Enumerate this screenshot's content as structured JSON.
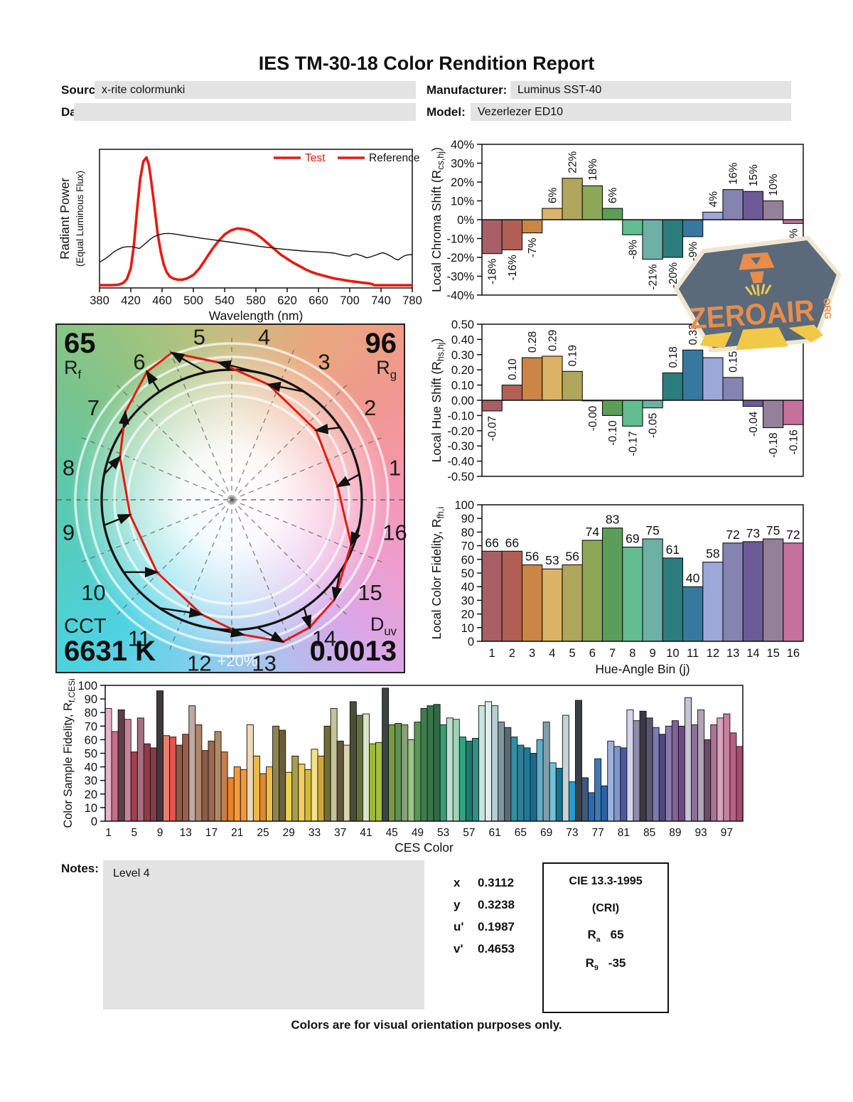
{
  "title": "IES TM-30-18 Color Rendition Report",
  "header": {
    "source_label": "Source:",
    "source_value": "x-rite colormunki",
    "manufacturer_label": "Manufacturer:",
    "manufacturer_value": "Luminus SST-40",
    "date_label": "Date:",
    "date_value": "",
    "model_label": "Model:",
    "model_value": "Vezerlezer ED10"
  },
  "bin_colors": [
    "#a85f66",
    "#b26055",
    "#cb8544",
    "#dcb366",
    "#b0a65c",
    "#8da757",
    "#5c9e59",
    "#62bd90",
    "#6fb0a4",
    "#2b7e7d",
    "#38789f",
    "#9ca8d8",
    "#8583b0",
    "#6c5b96",
    "#948099",
    "#c5719c"
  ],
  "vector_graphic": {
    "rf_value": "65",
    "rf_label": "R",
    "rf_sub": "f",
    "rg_value": "96",
    "rg_label": "R",
    "rg_sub": "g",
    "cct_label": "CCT",
    "cct_value": "6631 K",
    "duv_label": "D",
    "duv_sub": "uv",
    "duv_value": "0.0013",
    "ring_label": "+20%",
    "bins": [
      1,
      2,
      3,
      4,
      5,
      6,
      7,
      8,
      9,
      10,
      11,
      12,
      13,
      14,
      15,
      16
    ],
    "test_color": "#e8190f",
    "reference_color": "#111111",
    "wheel_colors": [
      "#c9bc82",
      "#e8a87e",
      "#f0988e",
      "#f497ae",
      "#f09ccc",
      "#d8a8ea",
      "#abc2ee",
      "#7fd0ec",
      "#4ed2e2",
      "#54cdc0",
      "#5fc8a8",
      "#7ac48c",
      "#a0c47e",
      "#c9bc82"
    ]
  },
  "chart_data": [
    {
      "id": "spd",
      "type": "line",
      "xlabel": "Wavelength (nm)",
      "ylabel": "Radiant Power",
      "ylabel2": "(Equal Luminous Flux)",
      "x_ticks": [
        380,
        420,
        460,
        500,
        540,
        580,
        620,
        660,
        700,
        740,
        780
      ],
      "xlim": [
        380,
        780
      ],
      "ylim": [
        0,
        1
      ],
      "legend": [
        {
          "label": "Test",
          "line_color": "#e8190f",
          "label_color": "#e8190f"
        },
        {
          "label": "Reference",
          "line_color": "#e8190f",
          "label_color": "#111111"
        }
      ],
      "series": [
        {
          "name": "Test",
          "color": "#e8190f",
          "width": 3.6,
          "points": [
            [
              380,
              0.005
            ],
            [
              396,
              0.005
            ],
            [
              404,
              0.008
            ],
            [
              410,
              0.02
            ],
            [
              415,
              0.05
            ],
            [
              420,
              0.13
            ],
            [
              424,
              0.3
            ],
            [
              428,
              0.56
            ],
            [
              432,
              0.79
            ],
            [
              436,
              0.92
            ],
            [
              440,
              0.95
            ],
            [
              443,
              0.9
            ],
            [
              446,
              0.78
            ],
            [
              450,
              0.6
            ],
            [
              454,
              0.4
            ],
            [
              458,
              0.26
            ],
            [
              462,
              0.16
            ],
            [
              466,
              0.1
            ],
            [
              470,
              0.068
            ],
            [
              475,
              0.052
            ],
            [
              480,
              0.046
            ],
            [
              486,
              0.045
            ],
            [
              492,
              0.055
            ],
            [
              500,
              0.08
            ],
            [
              508,
              0.13
            ],
            [
              516,
              0.2
            ],
            [
              524,
              0.27
            ],
            [
              532,
              0.33
            ],
            [
              540,
              0.38
            ],
            [
              548,
              0.41
            ],
            [
              556,
              0.425
            ],
            [
              564,
              0.42
            ],
            [
              572,
              0.41
            ],
            [
              580,
              0.385
            ],
            [
              588,
              0.35
            ],
            [
              596,
              0.31
            ],
            [
              604,
              0.27
            ],
            [
              612,
              0.23
            ],
            [
              620,
              0.2
            ],
            [
              628,
              0.17
            ],
            [
              636,
              0.145
            ],
            [
              644,
              0.12
            ],
            [
              652,
              0.1
            ],
            [
              660,
              0.085
            ],
            [
              670,
              0.07
            ],
            [
              680,
              0.055
            ],
            [
              690,
              0.045
            ],
            [
              700,
              0.035
            ],
            [
              710,
              0.028
            ],
            [
              718,
              0.022
            ],
            [
              726,
              0.017
            ],
            [
              729,
              0.012
            ],
            [
              731,
              0.004
            ],
            [
              740,
              0.004
            ],
            [
              780,
              0.004
            ]
          ]
        },
        {
          "name": "Reference",
          "color": "#111111",
          "width": 1.4,
          "points": [
            [
              380,
              0.175
            ],
            [
              386,
              0.195
            ],
            [
              392,
              0.22
            ],
            [
              398,
              0.25
            ],
            [
              404,
              0.27
            ],
            [
              410,
              0.285
            ],
            [
              416,
              0.29
            ],
            [
              422,
              0.29
            ],
            [
              427,
              0.282
            ],
            [
              431,
              0.276
            ],
            [
              435,
              0.295
            ],
            [
              440,
              0.32
            ],
            [
              445,
              0.345
            ],
            [
              450,
              0.365
            ],
            [
              456,
              0.378
            ],
            [
              462,
              0.386
            ],
            [
              468,
              0.388
            ],
            [
              474,
              0.385
            ],
            [
              480,
              0.38
            ],
            [
              490,
              0.37
            ],
            [
              500,
              0.362
            ],
            [
              510,
              0.352
            ],
            [
              520,
              0.345
            ],
            [
              530,
              0.337
            ],
            [
              540,
              0.329
            ],
            [
              550,
              0.321
            ],
            [
              560,
              0.312
            ],
            [
              570,
              0.304
            ],
            [
              580,
              0.296
            ],
            [
              590,
              0.288
            ],
            [
              600,
              0.281
            ],
            [
              610,
              0.274
            ],
            [
              620,
              0.268
            ],
            [
              630,
              0.263
            ],
            [
              640,
              0.258
            ],
            [
              650,
              0.254
            ],
            [
              660,
              0.251
            ],
            [
              670,
              0.247
            ],
            [
              680,
              0.242
            ],
            [
              688,
              0.231
            ],
            [
              694,
              0.223
            ],
            [
              700,
              0.22
            ],
            [
              704,
              0.232
            ],
            [
              708,
              0.236
            ],
            [
              713,
              0.227
            ],
            [
              718,
              0.217
            ],
            [
              722,
              0.207
            ],
            [
              726,
              0.213
            ],
            [
              730,
              0.221
            ],
            [
              734,
              0.229
            ],
            [
              738,
              0.238
            ],
            [
              742,
              0.245
            ],
            [
              746,
              0.238
            ],
            [
              750,
              0.227
            ],
            [
              754,
              0.214
            ],
            [
              758,
              0.199
            ],
            [
              762,
              0.191
            ],
            [
              766,
              0.209
            ],
            [
              770,
              0.222
            ],
            [
              774,
              0.229
            ],
            [
              778,
              0.231
            ],
            [
              780,
              0.227
            ]
          ]
        }
      ]
    },
    {
      "id": "chroma",
      "type": "bar",
      "ylabel": "Local Chroma Shift (R",
      "ylabel_sub": "cs,hj",
      "ylabel_end": ")",
      "ylim": [
        -40,
        40
      ],
      "ytick_values": [
        40,
        30,
        20,
        10,
        0,
        -10,
        -20,
        -30,
        -40
      ],
      "ytick_labels": [
        "40%",
        "30%",
        "20%",
        "10%",
        "0%",
        "-10%",
        "-20%",
        "-30%",
        "-40%"
      ],
      "values": [
        -18,
        -16,
        -7,
        6,
        22,
        18,
        6,
        -8,
        -21,
        -20,
        -9,
        4,
        16,
        15,
        10,
        -2
      ],
      "labels": [
        "-18%",
        "-16%",
        "-7%",
        "6%",
        "22%",
        "18%",
        "6%",
        "-8%",
        "-21%",
        "-20%",
        "-9%",
        "4%",
        "16%",
        "15%",
        "10%",
        "-2%"
      ]
    },
    {
      "id": "hue",
      "type": "bar",
      "ylabel": "Local Hue Shift (R",
      "ylabel_sub": "hs,hj",
      "ylabel_end": ")",
      "ylim": [
        -0.5,
        0.5
      ],
      "ytick_values": [
        0.5,
        0.4,
        0.3,
        0.2,
        0.1,
        0,
        -0.1,
        -0.2,
        -0.3,
        -0.4,
        -0.5
      ],
      "ytick_labels": [
        "0.50",
        "0.40",
        "0.30",
        "0.20",
        "0.10",
        "0.00",
        "-0.10",
        "-0.20",
        "-0.30",
        "-0.40",
        "-0.50"
      ],
      "values": [
        -0.07,
        0.1,
        0.28,
        0.29,
        0.19,
        -0.004,
        -0.1,
        -0.17,
        -0.05,
        0.18,
        0.33,
        0.28,
        0.15,
        -0.04,
        -0.18,
        -0.16
      ],
      "labels": [
        "-0.07",
        "0.10",
        "0.28",
        "0.29",
        "0.19",
        "-0.00",
        "-0.10",
        "-0.17",
        "-0.05",
        "0.18",
        "0.33",
        "0.28",
        "0.15",
        "-0.04",
        "-0.18",
        "-0.16"
      ]
    },
    {
      "id": "fidelity",
      "type": "bar",
      "ylabel": "Local Color Fidelity, R",
      "ylabel_sub": "fh,i",
      "ylabel_end": "",
      "xlabel": "Hue-Angle Bin (j)",
      "ylim": [
        0,
        100
      ],
      "ytick_values": [
        100,
        90,
        80,
        70,
        60,
        50,
        40,
        30,
        20,
        10,
        0
      ],
      "ytick_labels": [
        "100",
        "90",
        "80",
        "70",
        "60",
        "50",
        "40",
        "30",
        "20",
        "10",
        "0"
      ],
      "values": [
        66,
        66,
        56,
        53,
        56,
        74,
        83,
        69,
        75,
        61,
        40,
        58,
        72,
        73,
        75,
        72
      ],
      "labels": [
        "66",
        "66",
        "56",
        "53",
        "56",
        "74",
        "83",
        "69",
        "75",
        "61",
        "40",
        "58",
        "72",
        "73",
        "75",
        "72"
      ],
      "x_ticks": [
        1,
        2,
        3,
        4,
        5,
        6,
        7,
        8,
        9,
        10,
        11,
        12,
        13,
        14,
        15,
        16
      ]
    },
    {
      "id": "ces",
      "type": "bar",
      "ylabel": "Color Sample Fidelity, R",
      "ylabel_sub": "f,CESi",
      "ylabel_end": "",
      "xlabel": "CES Color",
      "ylim": [
        0,
        100
      ],
      "ytick_values": [
        100,
        90,
        80,
        70,
        60,
        50,
        40,
        30,
        20,
        10,
        0
      ],
      "ytick_labels": [
        "100",
        "90",
        "80",
        "70",
        "60",
        "50",
        "40",
        "30",
        "20",
        "10",
        "0"
      ],
      "x_ticks": [
        1,
        5,
        9,
        13,
        17,
        21,
        25,
        29,
        33,
        37,
        41,
        45,
        49,
        53,
        57,
        61,
        65,
        69,
        73,
        77,
        81,
        85,
        89,
        93,
        97
      ],
      "values": [
        83,
        66,
        82,
        75,
        51,
        76,
        57,
        54,
        96,
        63,
        62,
        56,
        64,
        85,
        71,
        52,
        59,
        66,
        51,
        32,
        40,
        38,
        71,
        48,
        35,
        40,
        70,
        67,
        36,
        48,
        42,
        38,
        53,
        48,
        70,
        83,
        59,
        56,
        88,
        78,
        79,
        57,
        58,
        98,
        71,
        72,
        71,
        60,
        73,
        83,
        85,
        86,
        71,
        76,
        75,
        62,
        59,
        61,
        85,
        88,
        85,
        73,
        69,
        62,
        56,
        54,
        50,
        60,
        73,
        43,
        39,
        78,
        29,
        89,
        32,
        21,
        46,
        26,
        59,
        55,
        54,
        82,
        74,
        81,
        76,
        69,
        64,
        70,
        74,
        70,
        91,
        71,
        82,
        60,
        71,
        76,
        79,
        65,
        55
      ],
      "colors": [
        "#e9b3ca",
        "#c76d89",
        "#5f3f47",
        "#c4849b",
        "#a33e4d",
        "#a86f83",
        "#8e3c47",
        "#823f49",
        "#3f383c",
        "#ed7d68",
        "#e0574a",
        "#8c5a49",
        "#9b5f4a",
        "#bfa9a3",
        "#b08567",
        "#8a5c49",
        "#9b6a50",
        "#b08a67",
        "#c77c4a",
        "#e5862c",
        "#f29d3d",
        "#ec9a41",
        "#ecd9b8",
        "#f0b64a",
        "#d98a2e",
        "#f2bc4e",
        "#8d8550",
        "#6b5f3a",
        "#f0d052",
        "#a89c4e",
        "#f0d058",
        "#d4b83a",
        "#f3e286",
        "#cfa93a",
        "#6f6c38",
        "#c2c49a",
        "#635636",
        "#d8d5ae",
        "#4a4f3a",
        "#666e44",
        "#d9e3c8",
        "#9cb83c",
        "#a4bf45",
        "#3c4440",
        "#7a9a48",
        "#5c9350",
        "#89a27a",
        "#9cc489",
        "#5c9457",
        "#3f7d4a",
        "#38764a",
        "#2e6b44",
        "#3a9d74",
        "#bfe0d0",
        "#9ed3ba",
        "#35a183",
        "#1f7a68",
        "#2f9184",
        "#c8e4e0",
        "#dfeeed",
        "#b5ced2",
        "#7e979e",
        "#5a6a70",
        "#2a93a4",
        "#2e7f99",
        "#22789a",
        "#1b6a8e",
        "#62aec6",
        "#7fa0ab",
        "#6fc2d8",
        "#15718e",
        "#c3d3d8",
        "#1e9ed0",
        "#3a3f46",
        "#3c5a7e",
        "#2a6bb0",
        "#3d78b5",
        "#2a62a8",
        "#9cb2dd",
        "#8095cc",
        "#50589c",
        "#d4d6ec",
        "#8e8cac",
        "#3b3a44",
        "#5c5670",
        "#7b7ab2",
        "#4c4880",
        "#8a7ab0",
        "#7e6298",
        "#6a4c84",
        "#c9c4d4",
        "#8c6f9a",
        "#b0a4ba",
        "#6d4a66",
        "#a87492",
        "#d8a4bc",
        "#c97f9f",
        "#b75f84",
        "#a84a6e"
      ]
    }
  ],
  "notes": {
    "label": "Notes:",
    "value": "Level 4"
  },
  "chromaticity": {
    "rows": [
      {
        "label": "x",
        "value": "0.3112"
      },
      {
        "label": "y",
        "value": "0.3238"
      },
      {
        "label": "u'",
        "value": "0.1987"
      },
      {
        "label": "v'",
        "value": "0.4653"
      }
    ]
  },
  "cie_box": {
    "title": "CIE 13.3-1995",
    "subtitle": "(CRI)",
    "rows": [
      {
        "label": "R",
        "sub": "a",
        "value": "65"
      },
      {
        "label": "R",
        "sub": "9",
        "value": "-35"
      }
    ]
  },
  "footer_note": "Colors are for visual orientation purposes only.",
  "logo": {
    "text": "ZEROAIR",
    "suffix": "ORG",
    "badge_color": "#5a6a7a",
    "border_color": "#efe6d2",
    "text_color": "#e88d4c",
    "beam_color": "#f2c84b"
  }
}
